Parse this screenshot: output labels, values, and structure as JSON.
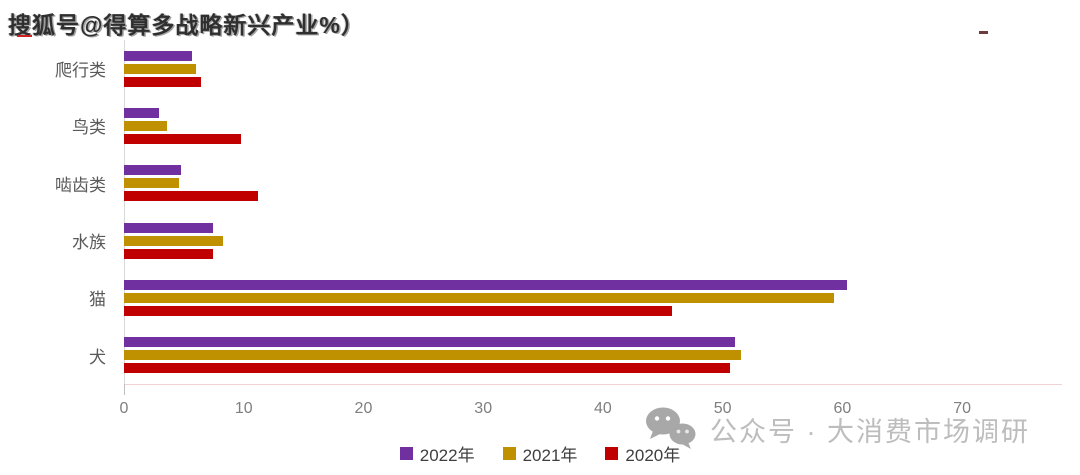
{
  "title_watermark": {
    "text": "搜狐号@得算多战略新兴产业%）"
  },
  "bottom_watermark": {
    "icon": "wechat-icon",
    "text": "公众号 · 大消费市场调研"
  },
  "legend": {
    "items": [
      {
        "label": "2022年",
        "color": "#7030a0"
      },
      {
        "label": "2021年",
        "color": "#bf9000"
      },
      {
        "label": "2020年",
        "color": "#c00000"
      }
    ]
  },
  "chart_data": {
    "type": "bar",
    "orientation": "horizontal",
    "title": "",
    "xlabel": "",
    "ylabel": "",
    "categories": [
      "爬行类",
      "鸟类",
      "啮齿类",
      "水族",
      "猫",
      "犬"
    ],
    "series": [
      {
        "name": "2022年",
        "color": "#7030a0",
        "values": [
          5.7,
          2.9,
          4.8,
          7.4,
          60.4,
          51.0
        ]
      },
      {
        "name": "2021年",
        "color": "#bf9000",
        "values": [
          6.0,
          3.6,
          4.6,
          8.3,
          59.3,
          51.5
        ]
      },
      {
        "name": "2020年",
        "color": "#c00000",
        "values": [
          6.4,
          9.8,
          11.2,
          7.4,
          45.8,
          50.6
        ]
      }
    ],
    "x_ticks": [
      0,
      10,
      20,
      30,
      40,
      50,
      60,
      70
    ],
    "x_range": [
      0,
      74
    ],
    "grid": false,
    "legend_position": "bottom"
  },
  "colors": {
    "axis_line": "#d9d9d9",
    "baseline": "#f0d2d2",
    "tick_label": "#7f7f7f",
    "category_label": "#595959",
    "watermark_gray": "#bdbdbd"
  }
}
